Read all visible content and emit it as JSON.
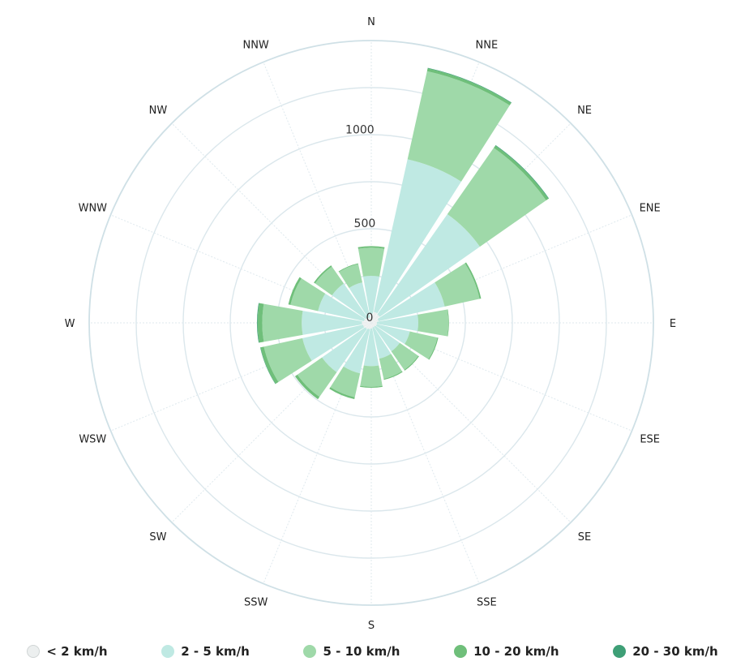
{
  "chart_data": {
    "type": "windrose",
    "directions": [
      "N",
      "NNE",
      "NE",
      "ENE",
      "E",
      "ESE",
      "SE",
      "SSE",
      "S",
      "SSW",
      "SW",
      "WSW",
      "W",
      "WNW",
      "NW",
      "NNW"
    ],
    "radial_ticks": [
      {
        "value": 0,
        "label": "0"
      },
      {
        "value": 500,
        "label": "500"
      },
      {
        "value": 1000,
        "label": "1000"
      }
    ],
    "rmax": 1500,
    "series": [
      {
        "name": "< 2 km/h",
        "color": "#ecefef",
        "values": [
          50,
          60,
          55,
          40,
          30,
          30,
          25,
          25,
          30,
          35,
          40,
          45,
          50,
          40,
          35,
          30
        ]
      },
      {
        "name": "2 - 5 km/h",
        "color": "#bfe9e3",
        "values": [
          200,
          830,
          650,
          360,
          220,
          180,
          160,
          170,
          200,
          240,
          280,
          330,
          320,
          250,
          220,
          190
        ]
      },
      {
        "name": "5 - 10 km/h",
        "color": "#9fd9a9",
        "values": [
          150,
          480,
          430,
          190,
          160,
          150,
          120,
          110,
          110,
          130,
          160,
          210,
          210,
          150,
          110,
          100
        ]
      },
      {
        "name": "10 - 20 km/h",
        "color": "#6fbf7a",
        "values": [
          8,
          15,
          15,
          8,
          3,
          5,
          5,
          5,
          5,
          10,
          15,
          18,
          25,
          12,
          8,
          4
        ]
      },
      {
        "name": "20 - 30 km/h",
        "color": "#3e9f76",
        "values": [
          0,
          3,
          3,
          0,
          0,
          0,
          0,
          0,
          0,
          0,
          0,
          2,
          3,
          0,
          0,
          0
        ]
      }
    ]
  }
}
